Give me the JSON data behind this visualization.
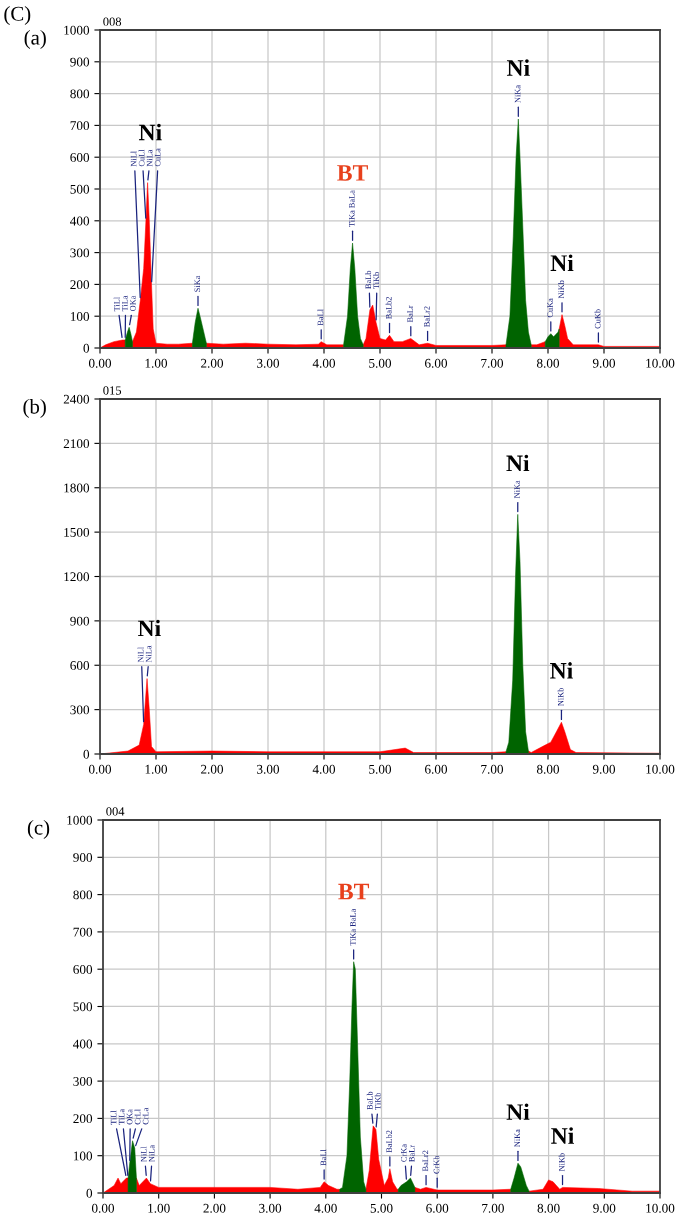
{
  "chart_data": [
    {
      "type": "area",
      "title": "(a)",
      "subtitle": "008",
      "annotations": [
        "(C)",
        {
          "text": "TiLl",
          "x": 0.4,
          "y": 25
        },
        {
          "text": "TiLa",
          "x": 0.45,
          "y": 25
        },
        {
          "text": "OKa",
          "x": 0.52,
          "y": 65
        },
        {
          "text": "NiLl",
          "x": 0.72,
          "y": 150
        },
        {
          "text": "CuLl",
          "x": 0.82,
          "y": 400
        },
        {
          "text": "NiLa",
          "x": 0.85,
          "y": 520
        },
        {
          "text": "CuLa",
          "x": 0.92,
          "y": 200
        },
        {
          "text": "SiKa",
          "x": 1.75,
          "y": 125
        },
        {
          "text": "BaLl",
          "x": 3.95,
          "y": 20
        },
        {
          "text": "TiKa BaLa",
          "x": 4.51,
          "y": 330
        },
        {
          "text": "BaLb",
          "x": 4.82,
          "y": 120
        },
        {
          "text": "TiKb",
          "x": 4.93,
          "y": 80
        },
        {
          "text": "BaLb2",
          "x": 5.17,
          "y": 40
        },
        {
          "text": "BaLr",
          "x": 5.55,
          "y": 30
        },
        {
          "text": "BaLr2",
          "x": 5.85,
          "y": 15
        },
        {
          "text": "NiKa",
          "x": 7.47,
          "y": 720
        },
        {
          "text": "CuKa",
          "x": 8.05,
          "y": 45
        },
        {
          "text": "NiKb",
          "x": 8.25,
          "y": 105
        },
        {
          "text": "CuKb",
          "x": 8.9,
          "y": 10
        },
        {
          "text": "Ni",
          "x": 0.85,
          "y": 520
        },
        {
          "text": "BT",
          "x": 4.51,
          "y": 330
        },
        {
          "text": "Ni",
          "x": 7.47,
          "y": 720
        },
        {
          "text": "Ni",
          "x": 8.25,
          "y": 105
        }
      ],
      "series": [
        {
          "color": "#ff0000",
          "x": [
            0,
            0.1,
            0.25,
            0.4,
            0.45,
            0.52,
            0.58,
            0.65,
            0.72,
            0.78,
            0.82,
            0.85,
            0.88,
            0.92,
            0.95,
            1.0,
            1.2,
            1.4,
            1.65,
            1.75,
            1.9,
            2.2,
            2.6,
            3.0,
            3.5,
            3.9,
            3.95,
            4.05,
            4.35,
            4.5,
            4.7,
            4.75,
            4.82,
            4.87,
            4.93,
            5.0,
            5.1,
            5.17,
            5.25,
            5.4,
            5.55,
            5.7,
            5.85,
            6.0,
            6.5,
            7.0,
            7.25,
            7.47,
            7.7,
            7.8,
            7.95,
            8.05,
            8.2,
            8.25,
            8.3,
            8.35,
            8.45,
            8.9,
            9.0,
            10.0
          ],
          "values": [
            0,
            10,
            20,
            25,
            25,
            null,
            20,
            50,
            150,
            250,
            400,
            520,
            400,
            200,
            60,
            15,
            12,
            12,
            15,
            null,
            15,
            12,
            15,
            12,
            10,
            12,
            20,
            10,
            10,
            null,
            10,
            30,
            120,
            135,
            80,
            30,
            25,
            40,
            20,
            20,
            30,
            10,
            15,
            8,
            8,
            8,
            10,
            null,
            10,
            10,
            20,
            null,
            60,
            105,
            70,
            30,
            10,
            10,
            5,
            5
          ]
        },
        {
          "color": "#006400",
          "x": [
            0.45,
            0.49,
            0.52,
            0.55,
            0.58
          ],
          "values": [
            25,
            50,
            65,
            45,
            20
          ]
        },
        {
          "color": "#006400",
          "x": [
            1.65,
            1.7,
            1.75,
            1.8,
            1.9
          ],
          "values": [
            15,
            80,
            125,
            90,
            15
          ]
        },
        {
          "color": "#006400",
          "x": [
            4.35,
            4.42,
            4.47,
            4.51,
            4.55,
            4.6,
            4.65,
            4.7
          ],
          "values": [
            10,
            100,
            250,
            330,
            250,
            100,
            30,
            10
          ]
        },
        {
          "color": "#006400",
          "x": [
            7.25,
            7.32,
            7.38,
            7.43,
            7.47,
            7.5,
            7.55,
            7.6,
            7.65,
            7.7
          ],
          "values": [
            10,
            100,
            350,
            600,
            720,
            600,
            380,
            150,
            50,
            10
          ]
        },
        {
          "color": "#006400",
          "x": [
            7.95,
            8.0,
            8.05,
            8.1,
            8.18,
            8.2
          ],
          "values": [
            20,
            35,
            45,
            35,
            50,
            60
          ]
        }
      ],
      "xlim": [
        0,
        10
      ],
      "ylim": [
        0,
        1000
      ],
      "xticks": [
        {
          "value": 0,
          "label": "0.00"
        },
        {
          "value": 1,
          "label": "1.00"
        },
        {
          "value": 2,
          "label": "2.00"
        },
        {
          "value": 3,
          "label": "3.00"
        },
        {
          "value": 4,
          "label": "4.00"
        },
        {
          "value": 5,
          "label": "5.00"
        },
        {
          "value": 6,
          "label": "6.00"
        },
        {
          "value": 7,
          "label": "7.00"
        },
        {
          "value": 8,
          "label": "8.00"
        },
        {
          "value": 9,
          "label": "9.00"
        },
        {
          "value": 10,
          "label": "10.00"
        }
      ],
      "yticks": [
        0,
        100,
        200,
        300,
        400,
        500,
        600,
        700,
        800,
        900,
        1000
      ],
      "grid": true
    },
    {
      "type": "area",
      "title": "(b)",
      "subtitle": "015",
      "annotations": [
        {
          "text": "NiLl",
          "x": 0.78,
          "y": 200
        },
        {
          "text": "NiLa",
          "x": 0.84,
          "y": 510
        },
        {
          "text": "NiKa",
          "x": 7.46,
          "y": 1620
        },
        {
          "text": "NiKb",
          "x": 8.24,
          "y": 215
        },
        {
          "text": "Ni",
          "x": 0.84,
          "y": 510
        },
        {
          "text": "Ni",
          "x": 7.46,
          "y": 1620
        },
        {
          "text": "Ni",
          "x": 8.24,
          "y": 215
        }
      ],
      "series": [
        {
          "color": "#ff0000",
          "x": [
            0,
            0.5,
            0.7,
            0.78,
            0.84,
            0.88,
            0.92,
            1.0,
            2.0,
            3.0,
            4.0,
            5.0,
            5.45,
            5.6,
            7.0,
            7.25,
            7.46,
            7.65,
            7.7,
            7.95,
            8.05,
            8.15,
            8.24,
            8.3,
            8.4,
            8.5,
            10.0
          ],
          "values": [
            0,
            20,
            60,
            200,
            510,
            300,
            50,
            15,
            20,
            15,
            15,
            15,
            40,
            10,
            10,
            15,
            null,
            20,
            10,
            60,
            80,
            150,
            215,
            150,
            30,
            10,
            5
          ]
        },
        {
          "color": "#006400",
          "x": [
            7.25,
            7.3,
            7.37,
            7.42,
            7.46,
            7.5,
            7.55,
            7.6,
            7.65
          ],
          "values": [
            15,
            80,
            500,
            1200,
            1620,
            1300,
            600,
            150,
            20
          ]
        }
      ],
      "xlim": [
        0,
        10
      ],
      "ylim": [
        0,
        2400
      ],
      "xticks": [
        {
          "value": 0,
          "label": "0.00"
        },
        {
          "value": 1,
          "label": "1.00"
        },
        {
          "value": 2,
          "label": "2.00"
        },
        {
          "value": 3,
          "label": "3.00"
        },
        {
          "value": 4,
          "label": "4.00"
        },
        {
          "value": 5,
          "label": "5.00"
        },
        {
          "value": 6,
          "label": "6.00"
        },
        {
          "value": 7,
          "label": "7.00"
        },
        {
          "value": 8,
          "label": "8.00"
        },
        {
          "value": 9,
          "label": "9.00"
        },
        {
          "value": 10,
          "label": "10.00"
        }
      ],
      "yticks": [
        0,
        300,
        600,
        900,
        1200,
        1500,
        1800,
        2100,
        2400
      ],
      "grid": true
    },
    {
      "type": "area",
      "title": "(c)",
      "subtitle": "004",
      "annotations": [
        {
          "text": "TiLl",
          "x": 0.42,
          "y": 40
        },
        {
          "text": "TiLa",
          "x": 0.45,
          "y": 40
        },
        {
          "text": "OKa",
          "x": 0.48,
          "y": 80
        },
        {
          "text": "CrLl",
          "x": 0.53,
          "y": 140
        },
        {
          "text": "CrLa",
          "x": 0.57,
          "y": 120
        },
        {
          "text": "NiLl",
          "x": 0.78,
          "y": 40
        },
        {
          "text": "NiLa",
          "x": 0.85,
          "y": 25
        },
        {
          "text": "BaLl",
          "x": 3.97,
          "y": 30
        },
        {
          "text": "TiKa BaLa",
          "x": 4.5,
          "y": 620
        },
        {
          "text": "BaLb",
          "x": 4.85,
          "y": 180
        },
        {
          "text": "TiKb",
          "x": 4.9,
          "y": 170
        },
        {
          "text": "BaLb2",
          "x": 5.15,
          "y": 65
        },
        {
          "text": "CrKa",
          "x": 5.45,
          "y": 30
        },
        {
          "text": "BaLr",
          "x": 5.52,
          "y": 40
        },
        {
          "text": "BaLr2",
          "x": 5.8,
          "y": 15
        },
        {
          "text": "CrKb",
          "x": 6.0,
          "y": 8
        },
        {
          "text": "NiKa",
          "x": 7.45,
          "y": 80
        },
        {
          "text": "NiKb",
          "x": 8.25,
          "y": 15
        },
        {
          "text": "BT",
          "x": 4.5,
          "y": 620
        },
        {
          "text": "Ni",
          "x": 7.45,
          "y": 80
        },
        {
          "text": "Ni",
          "x": 8.25,
          "y": 15
        }
      ],
      "series": [
        {
          "color": "#ff0000",
          "x": [
            0,
            0.2,
            0.27,
            0.32,
            0.42,
            0.45,
            0.53,
            0.6,
            0.65,
            0.78,
            0.85,
            1.0,
            2.0,
            3.0,
            3.5,
            3.9,
            3.97,
            4.05,
            4.2,
            4.25,
            4.5,
            4.72,
            4.78,
            4.85,
            4.9,
            4.95,
            5.05,
            5.12,
            5.15,
            5.2,
            5.28,
            5.3,
            5.45,
            5.6,
            5.7,
            5.8,
            6.0,
            7.0,
            7.3,
            7.32,
            7.45,
            7.65,
            7.9,
            8.0,
            8.08,
            8.2,
            8.25,
            8.9,
            9.5,
            10.0
          ],
          "values": [
            0,
            20,
            40,
            25,
            40,
            40,
            null,
            40,
            20,
            40,
            25,
            15,
            15,
            15,
            10,
            15,
            30,
            20,
            10,
            10,
            null,
            10,
            60,
            180,
            170,
            90,
            20,
            40,
            65,
            30,
            10,
            10,
            null,
            15,
            10,
            15,
            8,
            8,
            10,
            10,
            null,
            5,
            10,
            35,
            30,
            10,
            15,
            12,
            5,
            5
          ]
        },
        {
          "color": "#006400",
          "x": [
            0.45,
            0.48,
            0.53,
            0.57,
            0.6
          ],
          "values": [
            40,
            80,
            140,
            120,
            40
          ]
        },
        {
          "color": "#006400",
          "x": [
            4.25,
            4.3,
            4.38,
            4.43,
            4.47,
            4.5,
            4.53,
            4.57,
            4.62,
            4.68,
            4.72
          ],
          "values": [
            10,
            15,
            100,
            300,
            500,
            620,
            600,
            400,
            150,
            30,
            10
          ]
        },
        {
          "color": "#006400",
          "x": [
            5.3,
            5.35,
            5.45,
            5.52,
            5.6
          ],
          "values": [
            10,
            20,
            30,
            40,
            15
          ]
        },
        {
          "color": "#006400",
          "x": [
            7.32,
            7.38,
            7.45,
            7.5,
            7.6,
            7.65
          ],
          "values": [
            10,
            40,
            80,
            70,
            20,
            5
          ]
        }
      ],
      "xlim": [
        0,
        10
      ],
      "ylim": [
        0,
        1000
      ],
      "xticks": [
        {
          "value": 0,
          "label": "0.00"
        },
        {
          "value": 1,
          "label": "1.00"
        },
        {
          "value": 2,
          "label": "2.00"
        },
        {
          "value": 3,
          "label": "3.00"
        },
        {
          "value": 4,
          "label": "4.00"
        },
        {
          "value": 5,
          "label": "5.00"
        },
        {
          "value": 6,
          "label": "6.00"
        },
        {
          "value": 7,
          "label": "7.00"
        },
        {
          "value": 8,
          "label": "8.00"
        },
        {
          "value": 9,
          "label": "9.00"
        },
        {
          "value": 10,
          "label": "10.00"
        }
      ],
      "yticks": [
        0,
        100,
        200,
        300,
        400,
        500,
        600,
        700,
        800,
        900,
        1000
      ],
      "grid": true
    }
  ]
}
